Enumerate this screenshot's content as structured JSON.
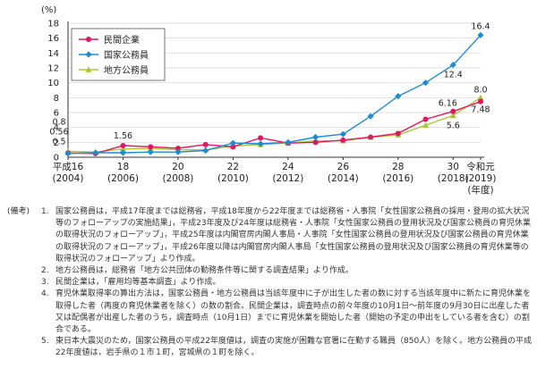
{
  "chart_data": {
    "type": "line",
    "y_unit": "(%)",
    "ylim": [
      0,
      18
    ],
    "y_ticks": [
      0,
      2,
      4,
      6,
      8,
      10,
      12,
      14,
      16,
      18
    ],
    "x_ticks": [
      {
        "year": 2004,
        "l1": "平成16",
        "l2": "(2004)"
      },
      {
        "year": 2006,
        "l1": "18",
        "l2": "(2006)"
      },
      {
        "year": 2008,
        "l1": "20",
        "l2": "(2008)"
      },
      {
        "year": 2010,
        "l1": "22",
        "l2": "(2010)"
      },
      {
        "year": 2012,
        "l1": "24",
        "l2": "(2012)"
      },
      {
        "year": 2014,
        "l1": "26",
        "l2": "(2014)"
      },
      {
        "year": 2016,
        "l1": "28",
        "l2": "(2016)"
      },
      {
        "year": 2018,
        "l1": "30",
        "l2": "(2018)"
      },
      {
        "year": 2019,
        "l1": "令和元",
        "l2": "(2019)"
      }
    ],
    "x_unit": "(年度)",
    "x": [
      2004,
      2005,
      2006,
      2007,
      2008,
      2009,
      2010,
      2011,
      2012,
      2013,
      2014,
      2015,
      2016,
      2017,
      2018,
      2019
    ],
    "series": [
      {
        "name": "民間企業",
        "color": "#e0195f",
        "marker": "circle",
        "values": [
          0.56,
          0.5,
          1.56,
          1.4,
          1.2,
          1.7,
          1.4,
          2.6,
          1.9,
          2.0,
          2.3,
          2.7,
          3.2,
          5.1,
          6.16,
          7.48
        ]
      },
      {
        "name": "国家公務員",
        "color": "#1f8ad0",
        "marker": "diamond",
        "values": [
          0.5,
          0.6,
          0.6,
          0.7,
          0.7,
          0.9,
          1.9,
          1.8,
          2.0,
          2.7,
          3.1,
          5.5,
          8.2,
          10.0,
          12.4,
          16.4
        ]
      },
      {
        "name": "地方公務員",
        "color": "#a8c83a",
        "marker": "triangle",
        "values": [
          0.8,
          0.7,
          1.1,
          1.2,
          1.0,
          1.0,
          1.5,
          1.7,
          1.9,
          2.2,
          2.2,
          2.7,
          3.0,
          4.3,
          5.6,
          8.0
        ]
      }
    ],
    "labels": [
      {
        "text": "0.8",
        "year": 2004,
        "value": 0.8
      },
      {
        "text": "0.56",
        "year": 2004,
        "value": 0.56
      },
      {
        "text": "0.5",
        "year": 2004,
        "value": 0.5
      },
      {
        "text": "1.56",
        "year": 2006,
        "value": 1.56
      },
      {
        "text": "12.4",
        "year": 2018,
        "value": 12.4
      },
      {
        "text": "6.16",
        "year": 2018,
        "value": 6.16
      },
      {
        "text": "5.6",
        "year": 2018,
        "value": 5.6
      },
      {
        "text": "16.4",
        "year": 2019,
        "value": 16.4
      },
      {
        "text": "8.0",
        "year": 2019,
        "value": 8.0
      },
      {
        "text": "7.48",
        "year": 2019,
        "value": 7.48
      }
    ],
    "legend_position": "top-left"
  },
  "notes": {
    "header": "(備考)",
    "items": [
      {
        "num": "1.",
        "text": "国家公務員は，平成17年度までは総務省，平成18年度から22年度までは総務省・人事院「女性国家公務員の採用・登用の拡大状況等のフォローアップの実施結果」，平成23年度及び24年度は総務省・人事院「女性国家公務員の登用状況及び国家公務員の育児休業の取得状況のフォローアップ」，平成25年度は内閣官房内閣人事局・人事院「女性国家公務員の登用状況及び国家公務員の育児休業の取得状況のフォローアップ」，平成26年度以降は内閣官房内閣人事局「女性国家公務員の登用状況及び国家公務員の育児休業等の取得状況のフォローアップ」より作成。"
      },
      {
        "num": "2.",
        "text": "地方公務員は，総務省「地方公共団体の勤務条件等に関する調査結果」より作成。"
      },
      {
        "num": "3.",
        "text": "民間企業は，「雇用均等基本調査」より作成。"
      },
      {
        "num": "4.",
        "text": "育児休業取得率の算出方法は，国家公務員・地方公務員は当該年度中に子が出生した者の数に対する当該年度中に新たに育児休業を取得した者（再度の育児休業者を除く）の数の割合。民間企業は，調査時点の前々年度の10月1日～前年度の9月30日に出産した者又は配偶者が出産した者のうち，調査時点（10月1日）までに育児休業を開始した者（開始の予定の申出をしている者を含む）の割合である。"
      },
      {
        "num": "5.",
        "text": "東日本大震災のため，国家公務員の平成22年度値は，調査の実施が困難な官署に在勤する職員（850人）を除く。地方公務員の平成22年度値は，岩手県の１市１町，宮城県の１町を除く。"
      }
    ]
  }
}
